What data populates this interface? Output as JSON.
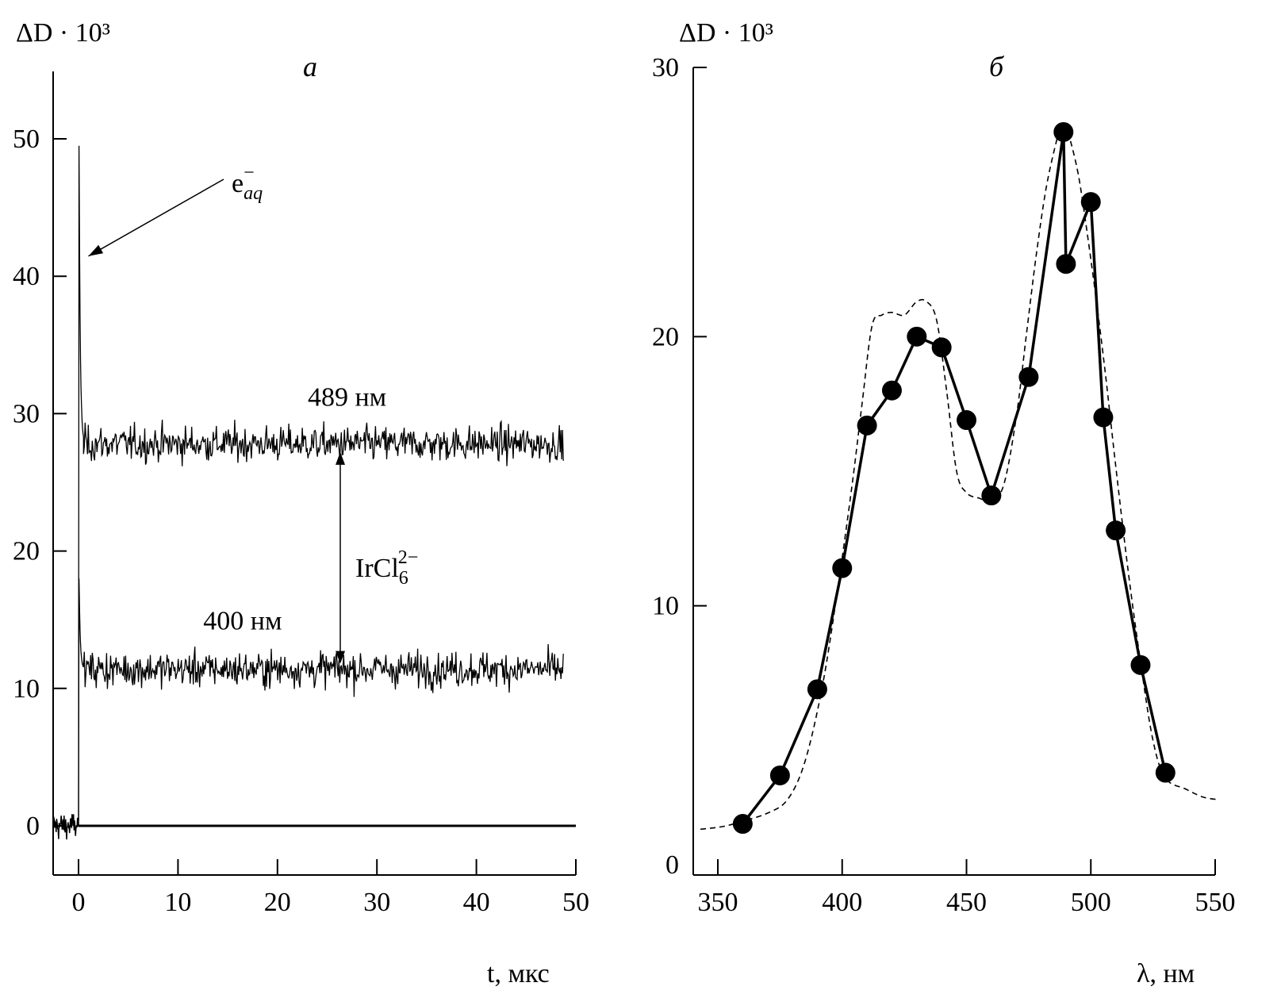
{
  "chart_data": [
    {
      "type": "line",
      "panel_label": "а",
      "ylabel": "ΔD · 10³",
      "xlabel": "t, мкс",
      "xlim": [
        -2.5,
        50
      ],
      "ylim": [
        -3,
        56
      ],
      "x_ticks": [
        0,
        10,
        20,
        30,
        40,
        50
      ],
      "y_ticks": [
        0,
        10,
        20,
        30,
        40,
        50
      ],
      "series": [
        {
          "name": "489 нм",
          "spike_peak": 49.5,
          "plateau": 27.8,
          "noise": 0.9,
          "x_end": 48.8
        },
        {
          "name": "400 нм",
          "spike_peak": 18,
          "plateau": 11.4,
          "noise": 0.9,
          "x_end": 48.8
        }
      ],
      "baseline": 0,
      "annotations": [
        {
          "text": "e",
          "sub": "aq",
          "sup": "−",
          "x": 0.2,
          "y": 41
        },
        {
          "text": "IrCl",
          "sub": "6",
          "sup": "2−",
          "arrow_from": 27.2,
          "arrow_to": 11.8,
          "x": 26.5
        }
      ]
    },
    {
      "type": "line",
      "panel_label": "б",
      "ylabel": "ΔD · 10³",
      "xlabel": "λ, нм",
      "xlim": [
        340,
        550
      ],
      "ylim": [
        0,
        30
      ],
      "x_ticks": [
        350,
        400,
        450,
        500,
        550
      ],
      "y_ticks": [
        0,
        10,
        20,
        30
      ],
      "series": [
        {
          "style": "markers",
          "x": [
            360,
            375,
            390,
            400,
            410,
            420,
            430,
            440,
            450,
            460,
            475,
            489,
            490,
            500,
            505,
            510,
            520,
            530
          ],
          "y": [
            1.9,
            3.7,
            6.9,
            11.4,
            16.7,
            18.0,
            20.0,
            19.6,
            16.9,
            14.1,
            18.5,
            27.6,
            22.7,
            25.0,
            17.0,
            12.8,
            7.8,
            3.8
          ]
        },
        {
          "style": "dashed",
          "x": [
            343,
            352,
            360,
            370,
            378,
            385,
            392,
            398,
            404,
            408,
            412,
            416,
            420,
            425,
            430,
            434,
            438,
            442,
            446,
            450,
            455,
            460,
            465,
            470,
            474,
            478,
            482,
            486,
            488,
            490,
            492,
            495,
            498,
            502,
            506,
            510,
            515,
            520,
            525,
            530,
            538,
            545,
            551
          ],
          "y": [
            1.7,
            1.8,
            2.0,
            2.3,
            2.8,
            4.2,
            7.0,
            10.5,
            14.5,
            17.5,
            20.4,
            20.8,
            20.9,
            20.8,
            21.3,
            21.3,
            20.6,
            18.0,
            15.0,
            14.2,
            14.0,
            13.9,
            14.5,
            17.0,
            20.0,
            23.0,
            25.5,
            27.2,
            27.8,
            27.7,
            27.2,
            26.0,
            24.2,
            21.5,
            18.5,
            15.2,
            11.3,
            7.9,
            5.0,
            3.6,
            3.2,
            2.9,
            2.8
          ]
        }
      ]
    }
  ]
}
